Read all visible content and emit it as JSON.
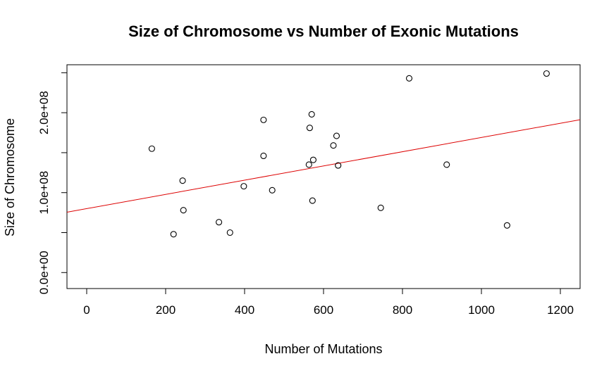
{
  "chart_data": {
    "type": "scatter",
    "title": "Size of Chromosome vs Number of Exonic Mutations",
    "xlabel": "Number of Mutations",
    "ylabel": "Size of Chromosome",
    "xlim": [
      -50,
      1250
    ],
    "ylim": [
      -20000000,
      260000000
    ],
    "x_ticks": [
      0,
      200,
      400,
      600,
      800,
      1000,
      1200
    ],
    "x_tick_labels": [
      "0",
      "200",
      "400",
      "600",
      "800",
      "1000",
      "1200"
    ],
    "y_ticks": [
      0,
      50000000,
      100000000,
      150000000,
      200000000,
      250000000
    ],
    "y_tick_labels": [
      "0.0e+00",
      "",
      "1.0e+08",
      "",
      "2.0e+08",
      ""
    ],
    "grid": false,
    "legend": "none",
    "points": [
      {
        "x": 165,
        "y": 155000000
      },
      {
        "x": 220,
        "y": 48000000
      },
      {
        "x": 243,
        "y": 115000000
      },
      {
        "x": 245,
        "y": 78000000
      },
      {
        "x": 335,
        "y": 63000000
      },
      {
        "x": 363,
        "y": 50000000
      },
      {
        "x": 398,
        "y": 108000000
      },
      {
        "x": 448,
        "y": 191000000
      },
      {
        "x": 448,
        "y": 146000000
      },
      {
        "x": 470,
        "y": 103000000
      },
      {
        "x": 563,
        "y": 135000000
      },
      {
        "x": 565,
        "y": 181000000
      },
      {
        "x": 570,
        "y": 198000000
      },
      {
        "x": 572,
        "y": 90000000
      },
      {
        "x": 574,
        "y": 141000000
      },
      {
        "x": 625,
        "y": 159000000
      },
      {
        "x": 633,
        "y": 171000000
      },
      {
        "x": 637,
        "y": 134000000
      },
      {
        "x": 745,
        "y": 81000000
      },
      {
        "x": 817,
        "y": 243000000
      },
      {
        "x": 912,
        "y": 135000000
      },
      {
        "x": 1065,
        "y": 59000000
      },
      {
        "x": 1165,
        "y": 249000000
      }
    ],
    "regression_line": {
      "intercept": 80000000,
      "slope": 89000,
      "color": "#dd0000"
    },
    "point_color": "#000000"
  }
}
